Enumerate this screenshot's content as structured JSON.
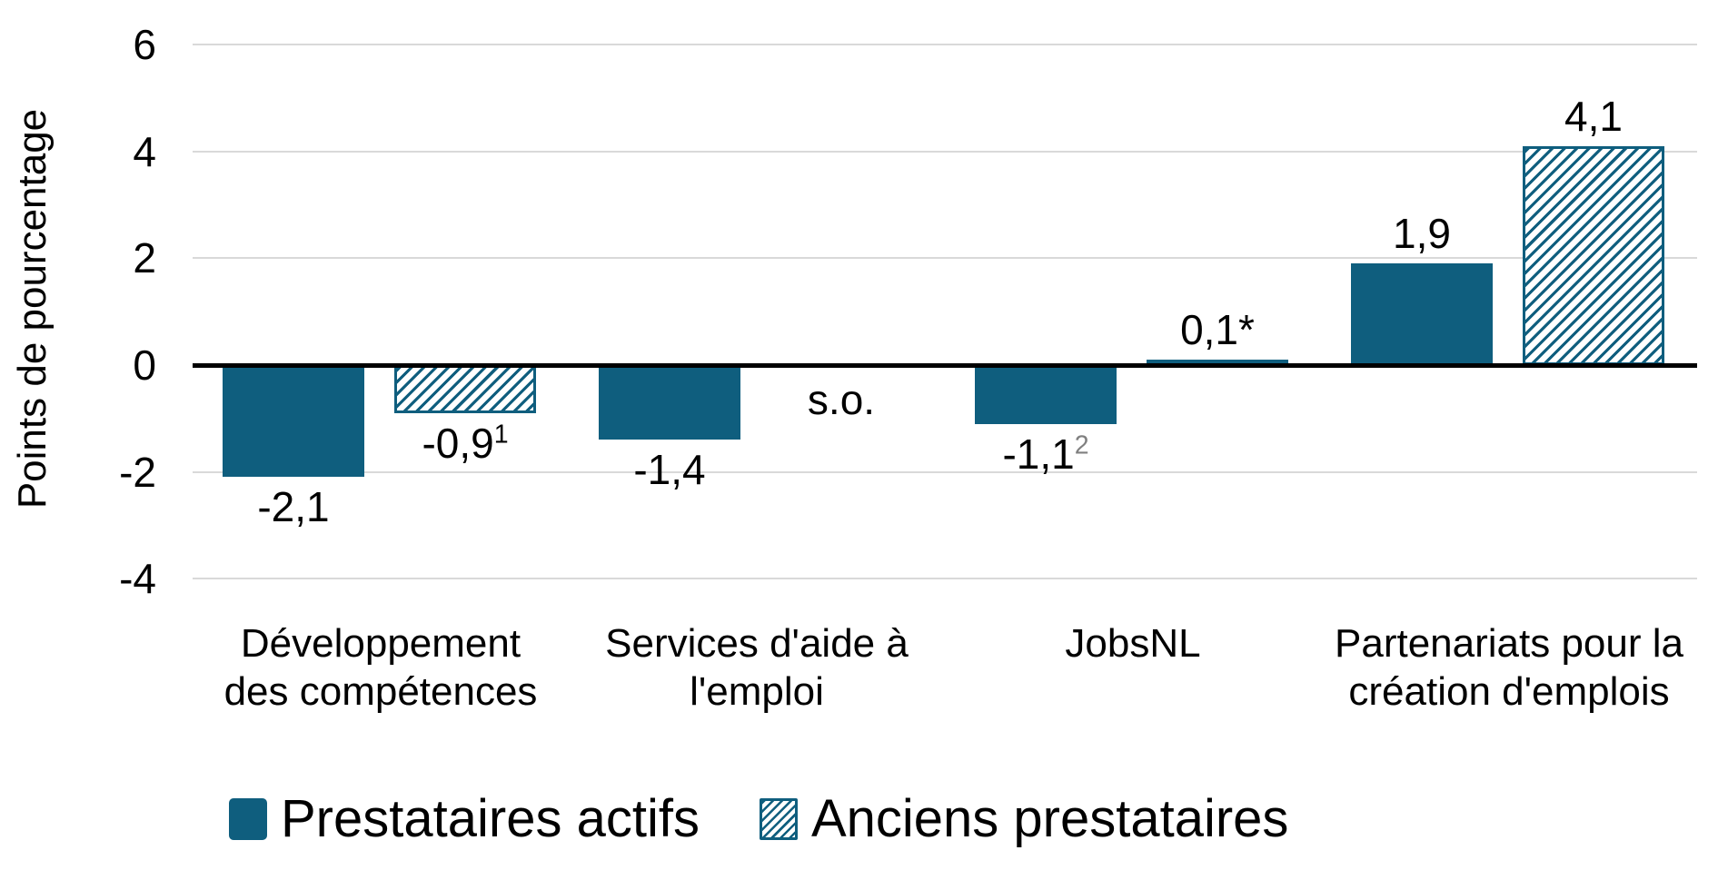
{
  "chart_data": {
    "type": "bar",
    "title": "",
    "ylabel": "Points de pourcentage",
    "xlabel": "",
    "yticks": [
      6,
      4,
      2,
      0,
      -2,
      -4
    ],
    "ylim": [
      -4.8,
      6
    ],
    "grid": true,
    "legend_position": "bottom",
    "categories": [
      "Développement des compétences",
      "Services d'aide à l'emploi",
      "JobsNL",
      "Partenariats pour la création d'emplois"
    ],
    "category_lines": [
      [
        "Développement",
        "des compétences"
      ],
      [
        "Services d'aide à",
        "l'emploi"
      ],
      [
        "JobsNL"
      ],
      [
        "Partenariats pour la",
        "création d'emplois"
      ]
    ],
    "series": [
      {
        "name": "Prestataires actifs",
        "style": "solid",
        "values": [
          -2.1,
          -1.4,
          -1.1,
          1.9
        ],
        "labels": [
          {
            "text": "-2,1"
          },
          {
            "text": "-1,4"
          },
          {
            "text": "-1,1",
            "sup": "2",
            "sup_gray": true
          },
          {
            "text": "1,9"
          }
        ]
      },
      {
        "name": "Anciens prestataires",
        "style": "hatched",
        "values": [
          -0.9,
          null,
          0.1,
          4.1
        ],
        "labels": [
          {
            "text": "-0,9",
            "sup": "1"
          },
          {
            "text": "s.o."
          },
          {
            "text": "0,1*"
          },
          {
            "text": "4,1"
          }
        ]
      }
    ],
    "colors": {
      "bar": "#0f5e7e",
      "gridline": "#d9d9d9",
      "axis": "#000000",
      "sup_gray": "#808080",
      "background": "#ffffff",
      "text": "#000000"
    }
  }
}
